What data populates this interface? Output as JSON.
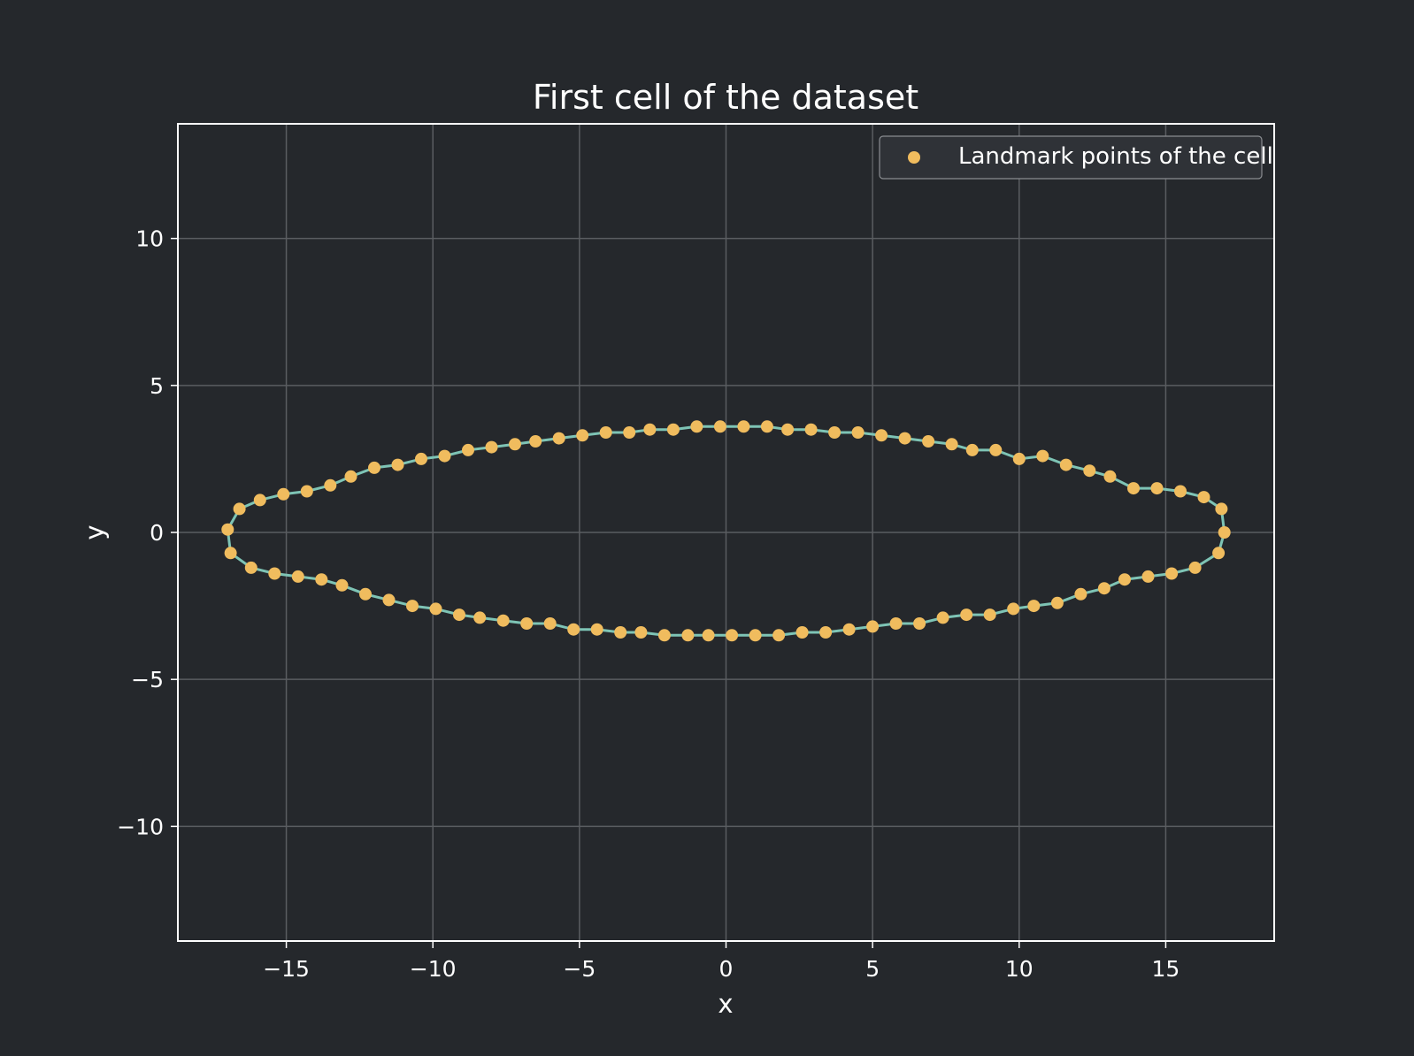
{
  "colors": {
    "background": "#25282c",
    "grid": "#5a5d61",
    "axes": "#ffffff",
    "line": "#7ec4b5",
    "points": "#f0bc5e",
    "legend_bg": "#2f3237",
    "legend_border": "#8a8d91"
  },
  "chart_data": {
    "type": "scatter",
    "title": "First cell of the dataset",
    "xlabel": "x",
    "ylabel": "y",
    "xlim": [
      -18.7,
      18.7
    ],
    "ylim": [
      -13.9,
      13.9
    ],
    "xticks": [
      -15,
      -10,
      -5,
      0,
      5,
      10,
      15
    ],
    "yticks": [
      -10,
      -5,
      0,
      5,
      10
    ],
    "xtick_labels": [
      "−15",
      "−10",
      "−5",
      "0",
      "5",
      "10",
      "15"
    ],
    "ytick_labels": [
      "−10",
      "−5",
      "0",
      "5",
      "10"
    ],
    "grid": true,
    "legend": {
      "position": "top-right",
      "entries": [
        "Landmark points of the cell"
      ]
    },
    "series": [
      {
        "name": "Landmark points of the cell",
        "marker": "circle",
        "connected_line": true,
        "closed": true,
        "points": [
          [
            17.0,
            0.0
          ],
          [
            16.8,
            -0.7
          ],
          [
            16.0,
            -1.2
          ],
          [
            15.2,
            -1.4
          ],
          [
            14.4,
            -1.5
          ],
          [
            13.6,
            -1.6
          ],
          [
            12.9,
            -1.9
          ],
          [
            12.1,
            -2.1
          ],
          [
            11.3,
            -2.4
          ],
          [
            10.5,
            -2.5
          ],
          [
            9.8,
            -2.6
          ],
          [
            9.0,
            -2.8
          ],
          [
            8.2,
            -2.8
          ],
          [
            7.4,
            -2.9
          ],
          [
            6.6,
            -3.1
          ],
          [
            5.8,
            -3.1
          ],
          [
            5.0,
            -3.2
          ],
          [
            4.2,
            -3.3
          ],
          [
            3.4,
            -3.4
          ],
          [
            2.6,
            -3.4
          ],
          [
            1.8,
            -3.5
          ],
          [
            1.0,
            -3.5
          ],
          [
            0.2,
            -3.5
          ],
          [
            -0.6,
            -3.5
          ],
          [
            -1.3,
            -3.5
          ],
          [
            -2.1,
            -3.5
          ],
          [
            -2.9,
            -3.4
          ],
          [
            -3.6,
            -3.4
          ],
          [
            -4.4,
            -3.3
          ],
          [
            -5.2,
            -3.3
          ],
          [
            -6.0,
            -3.1
          ],
          [
            -6.8,
            -3.1
          ],
          [
            -7.6,
            -3.0
          ],
          [
            -8.4,
            -2.9
          ],
          [
            -9.1,
            -2.8
          ],
          [
            -9.9,
            -2.6
          ],
          [
            -10.7,
            -2.5
          ],
          [
            -11.5,
            -2.3
          ],
          [
            -12.3,
            -2.1
          ],
          [
            -13.1,
            -1.8
          ],
          [
            -13.8,
            -1.6
          ],
          [
            -14.6,
            -1.5
          ],
          [
            -15.4,
            -1.4
          ],
          [
            -16.2,
            -1.2
          ],
          [
            -16.9,
            -0.7
          ],
          [
            -17.0,
            0.1
          ],
          [
            -16.6,
            0.8
          ],
          [
            -15.9,
            1.1
          ],
          [
            -15.1,
            1.3
          ],
          [
            -14.3,
            1.4
          ],
          [
            -13.5,
            1.6
          ],
          [
            -12.8,
            1.9
          ],
          [
            -12.0,
            2.2
          ],
          [
            -11.2,
            2.3
          ],
          [
            -10.4,
            2.5
          ],
          [
            -9.6,
            2.6
          ],
          [
            -8.8,
            2.8
          ],
          [
            -8.0,
            2.9
          ],
          [
            -7.2,
            3.0
          ],
          [
            -6.5,
            3.1
          ],
          [
            -5.7,
            3.2
          ],
          [
            -4.9,
            3.3
          ],
          [
            -4.1,
            3.4
          ],
          [
            -3.3,
            3.4
          ],
          [
            -2.6,
            3.5
          ],
          [
            -1.8,
            3.5
          ],
          [
            -1.0,
            3.6
          ],
          [
            -0.2,
            3.6
          ],
          [
            0.6,
            3.6
          ],
          [
            1.4,
            3.6
          ],
          [
            2.1,
            3.5
          ],
          [
            2.9,
            3.5
          ],
          [
            3.7,
            3.4
          ],
          [
            4.5,
            3.4
          ],
          [
            5.3,
            3.3
          ],
          [
            6.1,
            3.2
          ],
          [
            6.9,
            3.1
          ],
          [
            7.7,
            3.0
          ],
          [
            8.4,
            2.8
          ],
          [
            9.2,
            2.8
          ],
          [
            10.0,
            2.5
          ],
          [
            10.8,
            2.6
          ],
          [
            11.6,
            2.3
          ],
          [
            12.4,
            2.1
          ],
          [
            13.1,
            1.9
          ],
          [
            13.9,
            1.5
          ],
          [
            14.7,
            1.5
          ],
          [
            15.5,
            1.4
          ],
          [
            16.3,
            1.2
          ],
          [
            16.9,
            0.8
          ]
        ]
      }
    ]
  }
}
